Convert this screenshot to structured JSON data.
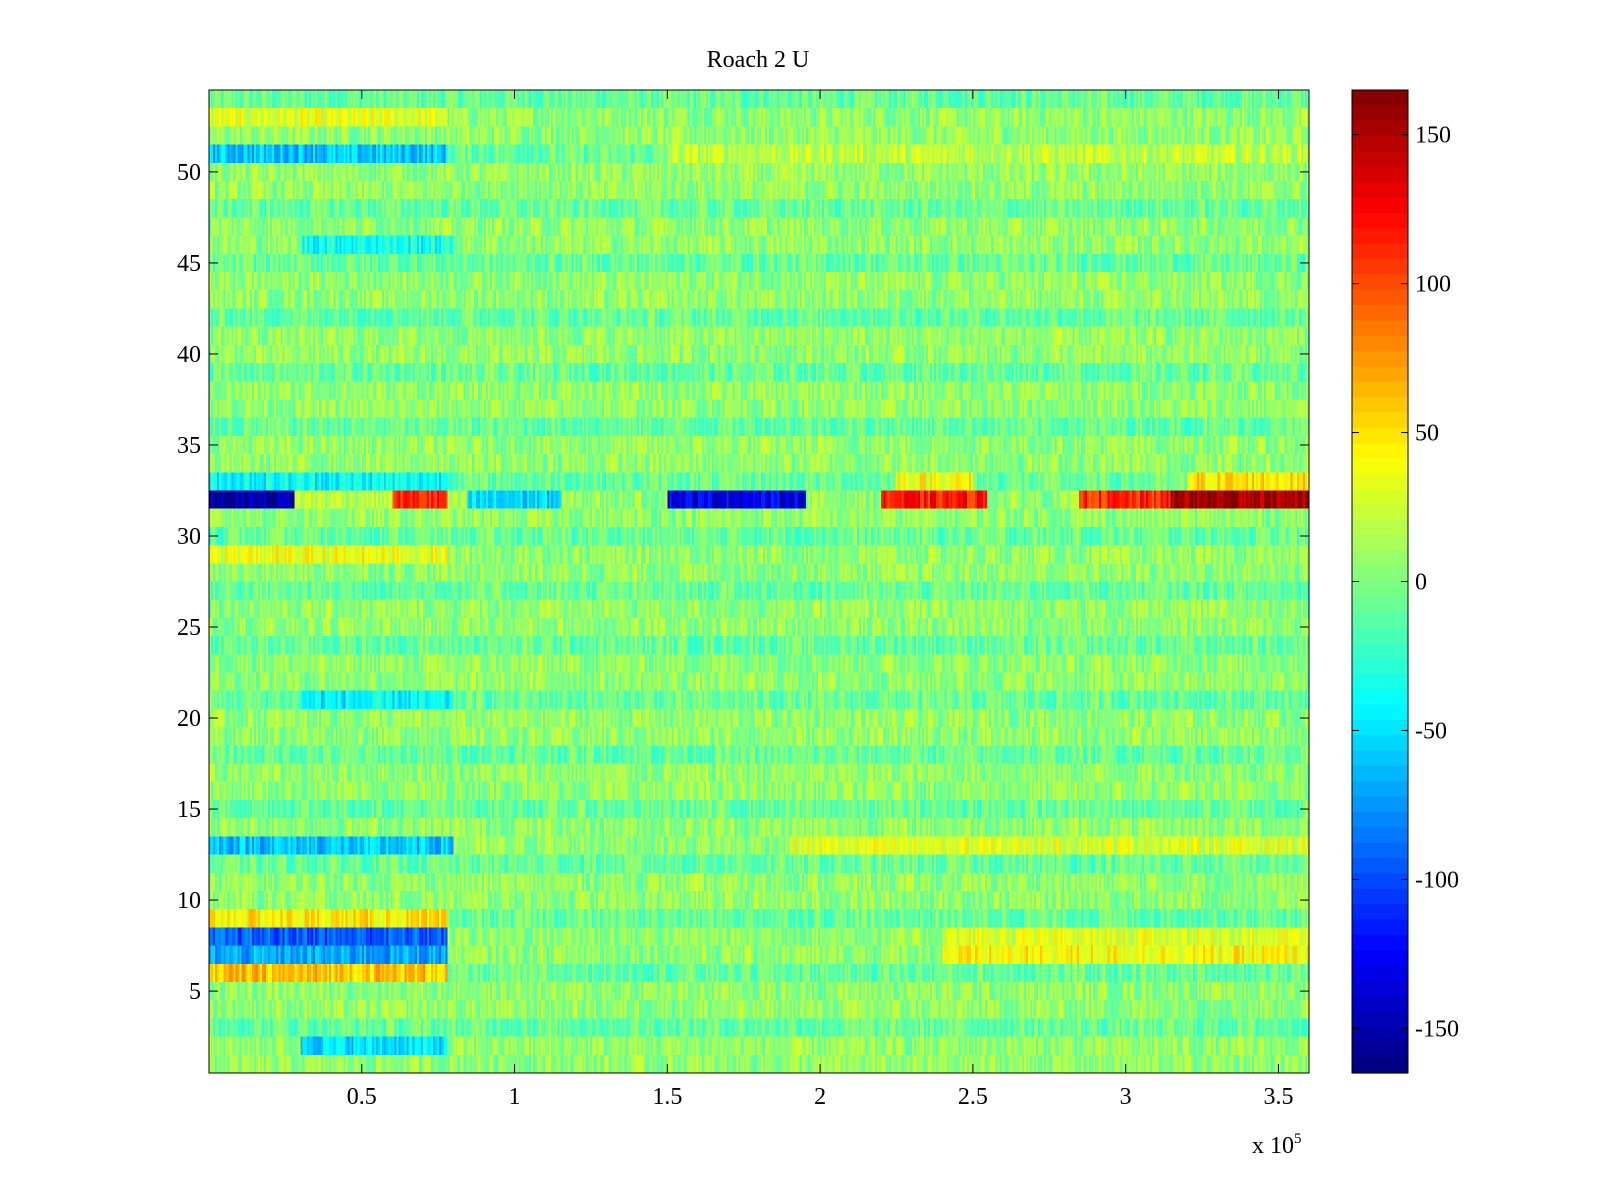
{
  "chart_data": {
    "type": "heatmap",
    "title": "Roach 2 U",
    "xlabel": "",
    "ylabel": "",
    "x_multiplier_label": "x 10",
    "x_multiplier_exponent": "5",
    "xlim": [
      0,
      3.6
    ],
    "ylim": [
      0.5,
      54.5
    ],
    "x_ticks": [
      0.5,
      1,
      1.5,
      2,
      2.5,
      3,
      3.5
    ],
    "x_tick_labels": [
      "0.5",
      "1",
      "1.5",
      "2",
      "2.5",
      "3",
      "3.5"
    ],
    "y_ticks": [
      5,
      10,
      15,
      20,
      25,
      30,
      35,
      40,
      45,
      50
    ],
    "y_tick_labels": [
      "5",
      "10",
      "15",
      "20",
      "25",
      "30",
      "35",
      "40",
      "45",
      "50"
    ],
    "rows": 54,
    "colormap": "jet",
    "clim": [
      -165,
      165
    ],
    "colorbar_ticks": [
      150,
      100,
      50,
      0,
      -50,
      -100,
      -150
    ],
    "colorbar_tick_labels": [
      "150",
      "100",
      "50",
      "0",
      "-50",
      "-100",
      "-150"
    ],
    "background_value": 0,
    "noise_amplitude": 22,
    "features": [
      {
        "row": 53,
        "x_start": 0.0,
        "x_end": 0.78,
        "value": 30
      },
      {
        "row": 51,
        "x_start": 0.0,
        "x_end": 0.78,
        "value": -60
      },
      {
        "row": 51,
        "x_start": 1.5,
        "x_end": 3.6,
        "value": 20
      },
      {
        "row": 46,
        "x_start": 0.3,
        "x_end": 0.8,
        "value": -35
      },
      {
        "row": 33,
        "x_start": 0.0,
        "x_end": 0.78,
        "value": -40
      },
      {
        "row": 33,
        "x_start": 2.25,
        "x_end": 2.5,
        "value": 40
      },
      {
        "row": 33,
        "x_start": 3.2,
        "x_end": 3.6,
        "value": 50
      },
      {
        "row": 32,
        "x_start": 0.0,
        "x_end": 0.28,
        "value": -150
      },
      {
        "row": 32,
        "x_start": 0.28,
        "x_end": 0.6,
        "value": 20
      },
      {
        "row": 32,
        "x_start": 0.6,
        "x_end": 0.78,
        "value": 110
      },
      {
        "row": 32,
        "x_start": 0.85,
        "x_end": 1.15,
        "value": -55
      },
      {
        "row": 32,
        "x_start": 1.5,
        "x_end": 1.95,
        "value": -130
      },
      {
        "row": 32,
        "x_start": 2.2,
        "x_end": 2.55,
        "value": 115
      },
      {
        "row": 32,
        "x_start": 2.85,
        "x_end": 3.15,
        "value": 110
      },
      {
        "row": 32,
        "x_start": 3.15,
        "x_end": 3.6,
        "value": 155
      },
      {
        "row": 29,
        "x_start": 0.0,
        "x_end": 0.78,
        "value": 35
      },
      {
        "row": 21,
        "x_start": 0.3,
        "x_end": 0.8,
        "value": -45
      },
      {
        "row": 13,
        "x_start": 0.0,
        "x_end": 0.8,
        "value": -60
      },
      {
        "row": 13,
        "x_start": 1.9,
        "x_end": 3.6,
        "value": 30
      },
      {
        "row": 9,
        "x_start": 0.0,
        "x_end": 0.78,
        "value": 45
      },
      {
        "row": 8,
        "x_start": 0.0,
        "x_end": 0.78,
        "value": -95
      },
      {
        "row": 8,
        "x_start": 2.4,
        "x_end": 3.6,
        "value": 30
      },
      {
        "row": 7,
        "x_start": 0.0,
        "x_end": 0.78,
        "value": -70
      },
      {
        "row": 7,
        "x_start": 2.4,
        "x_end": 3.6,
        "value": 40
      },
      {
        "row": 6,
        "x_start": 0.0,
        "x_end": 0.78,
        "value": 60
      },
      {
        "row": 2,
        "x_start": 0.3,
        "x_end": 0.78,
        "value": -50
      }
    ]
  }
}
